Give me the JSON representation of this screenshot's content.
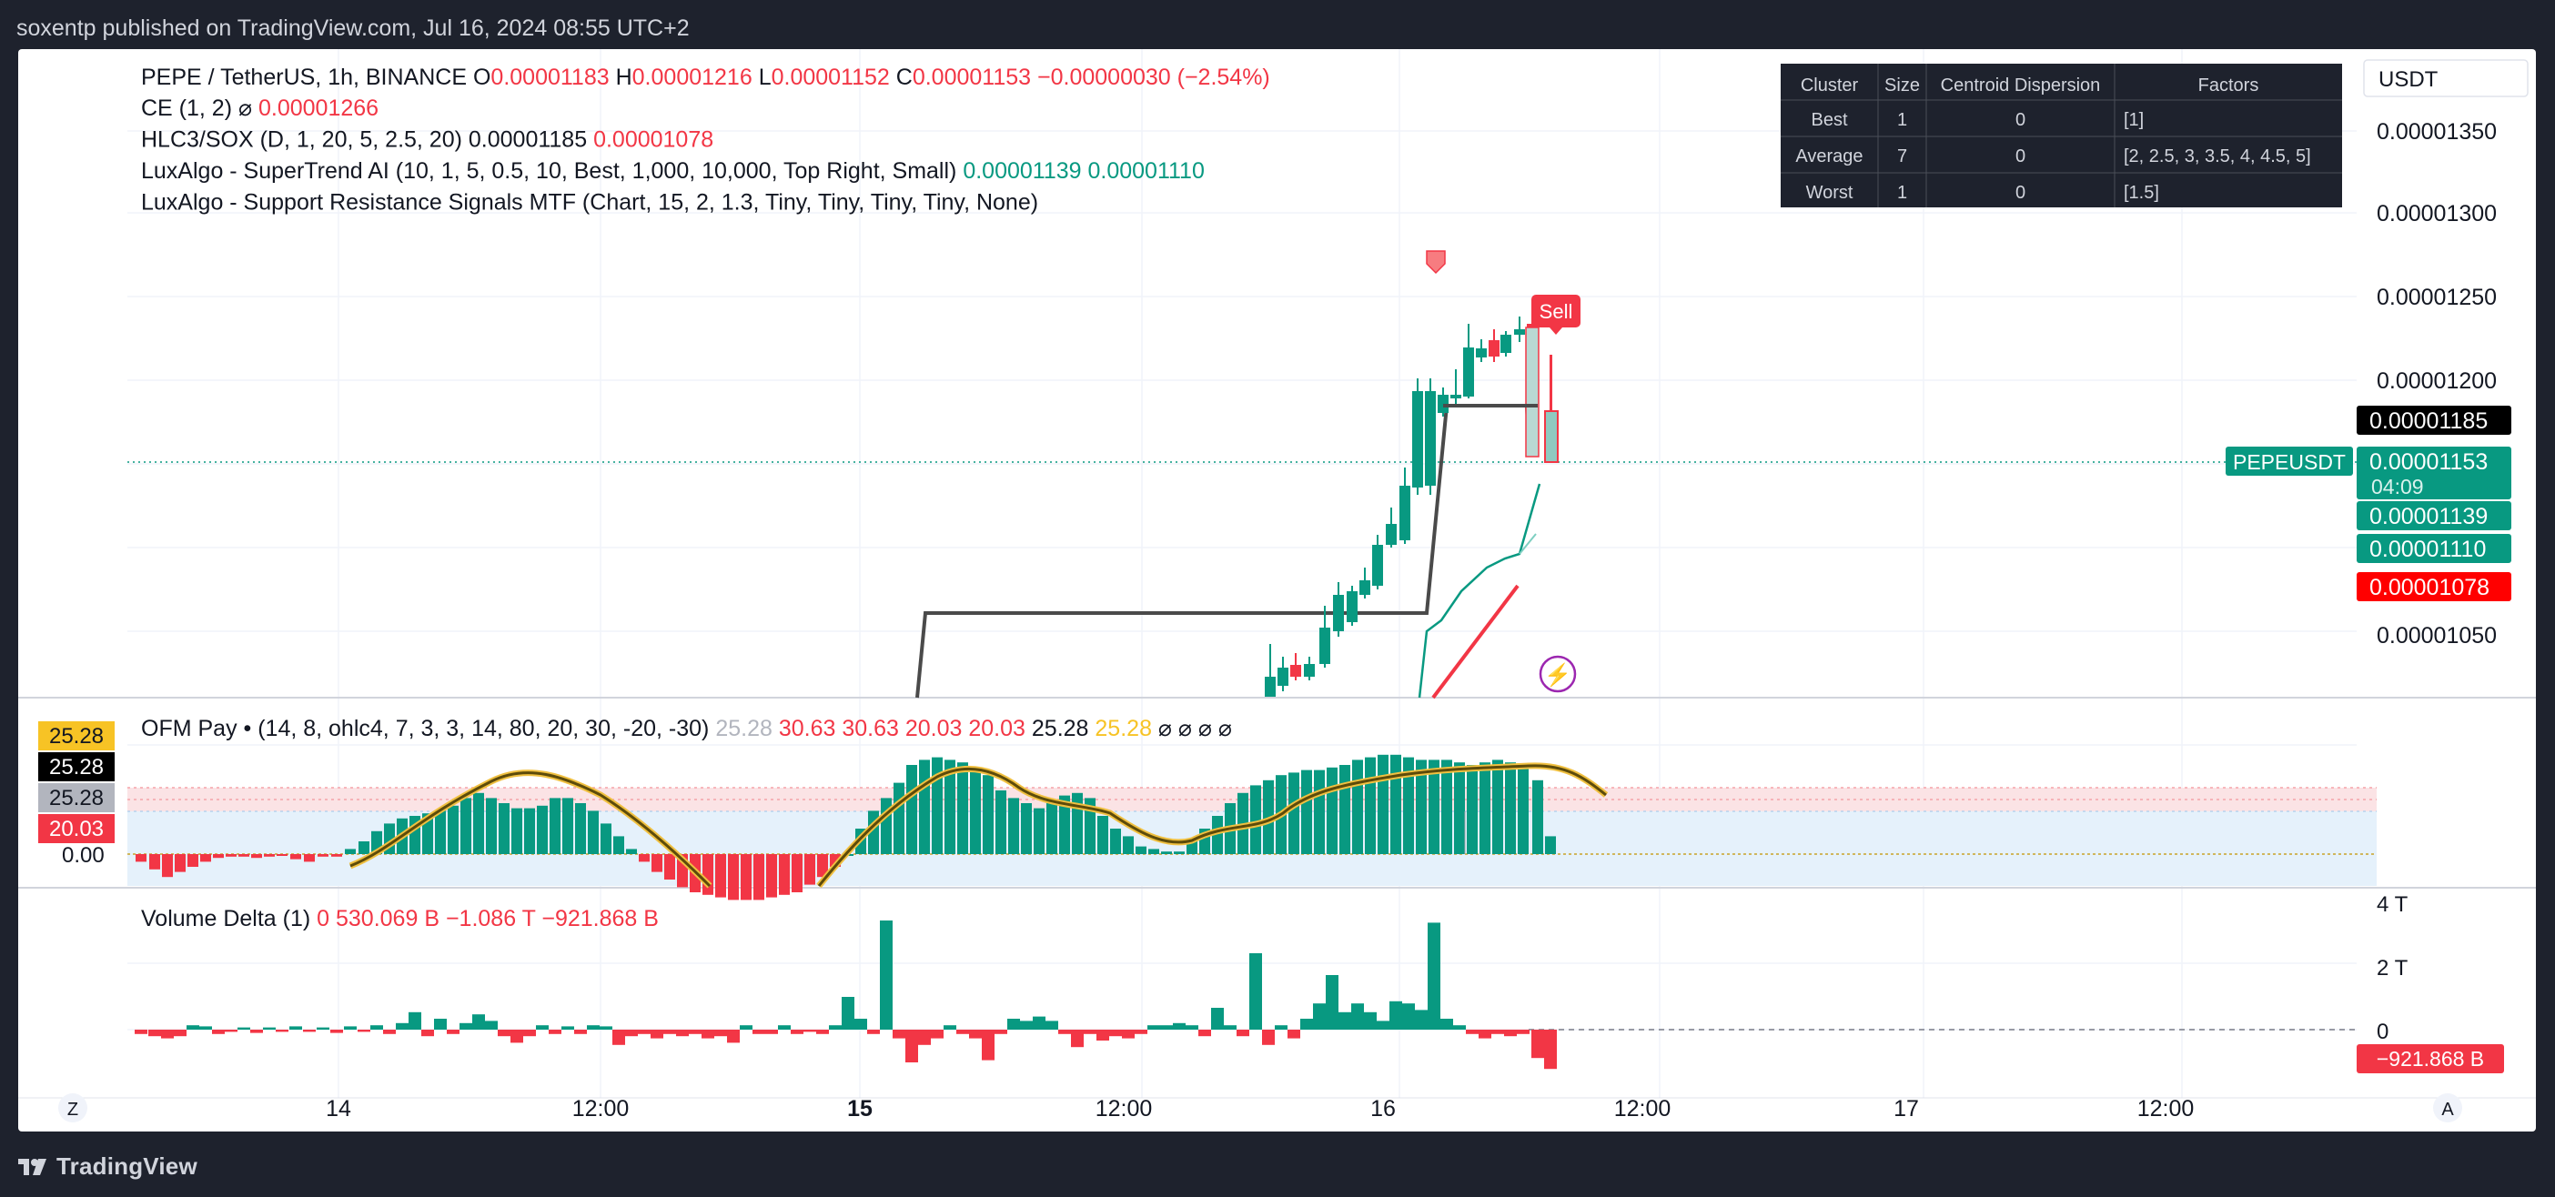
{
  "publisher": "soxentp published on TradingView.com, Jul 16, 2024 08:55 UTC+2",
  "footer": {
    "brand": "TradingView"
  },
  "main": {
    "symbol": "PEPE / TetherUS, 1h, BINANCE",
    "ohlc": {
      "o_label": "O",
      "o": "0.00001183",
      "h_label": "H",
      "h": "0.00001216",
      "l_label": "L",
      "l": "0.00001152",
      "c_label": "C",
      "c": "0.00001153",
      "change": "−0.00000030 (−2.54%)"
    },
    "indicators": [
      {
        "name": "CE (1, 2)",
        "sym": "⌀",
        "values": [
          {
            "v": "0.00001266",
            "color": "#f23645"
          }
        ]
      },
      {
        "name": "HLC3/SOX (D, 1, 20, 5, 2.5, 20)",
        "values": [
          {
            "v": "0.00001185",
            "color": "#131722"
          },
          {
            "v": "0.00001078",
            "color": "#f23645"
          }
        ]
      },
      {
        "name": "LuxAlgo - SuperTrend AI (10, 1, 5, 0.5, 10, Best, 1,000, 10,000, Top Right, Small)",
        "values": [
          {
            "v": "0.00001139",
            "color": "#089981"
          },
          {
            "v": "0.00001110",
            "color": "#089981"
          }
        ]
      },
      {
        "name": "LuxAlgo - Support Resistance Signals MTF (Chart, 15, 2, 1.3, Tiny, Tiny, Tiny, Tiny, None)",
        "values": []
      }
    ],
    "currency": "USDT",
    "y_ticks": [
      "0.00001350",
      "0.00001300",
      "0.00001250",
      "0.00001200",
      "0.00001050"
    ],
    "price_labels": [
      {
        "text": "0.00001185",
        "bg": "#000000"
      },
      {
        "text": "0.00001153",
        "bg": "#089981",
        "sub": "04:09"
      },
      {
        "text": "0.00001139",
        "bg": "#089981"
      },
      {
        "text": "0.00001110",
        "bg": "#089981"
      },
      {
        "text": "0.00001078",
        "bg": "#ff0000"
      }
    ],
    "symbol_tag": "PEPEUSDT",
    "sell_label": "Sell",
    "cluster_table": {
      "headers": [
        "Cluster",
        "Size",
        "Centroid Dispersion",
        "Factors"
      ],
      "rows": [
        [
          "Best",
          "1",
          "0",
          "[1]"
        ],
        [
          "Average",
          "7",
          "0",
          "[2, 2.5, 3, 3.5, 4, 4.5, 5]"
        ],
        [
          "Worst",
          "1",
          "0",
          "[1.5]"
        ]
      ]
    }
  },
  "ofm": {
    "title": "OFM Pay",
    "params": "(14, 8, ohlc4, 7, 3, 3, 14, 80, 20, 30, -20, -30)",
    "values": [
      {
        "v": "25.28",
        "color": "#b2b5be"
      },
      {
        "v": "30.63",
        "color": "#f23645"
      },
      {
        "v": "30.63",
        "color": "#f23645"
      },
      {
        "v": "20.03",
        "color": "#f23645"
      },
      {
        "v": "20.03",
        "color": "#f23645"
      },
      {
        "v": "25.28",
        "color": "#131722"
      },
      {
        "v": "25.28",
        "color": "#f7c325"
      }
    ],
    "empty_values": [
      "⌀",
      "⌀",
      "⌀",
      "⌀"
    ],
    "axis_labels": [
      {
        "text": "25.28",
        "bg": "#f7c325",
        "fg": "#131722"
      },
      {
        "text": "25.28",
        "bg": "#000000",
        "fg": "#ffffff"
      },
      {
        "text": "25.28",
        "bg": "#b2b5be",
        "fg": "#131722"
      },
      {
        "text": "20.03",
        "bg": "#f23645",
        "fg": "#ffffff"
      }
    ],
    "zero_label": "0.00"
  },
  "volume": {
    "title": "Volume Delta (1)",
    "values": [
      {
        "v": "0",
        "color": "#f23645"
      },
      {
        "v": "530.069 B",
        "color": "#f23645"
      },
      {
        "v": "−1.086 T",
        "color": "#f23645"
      },
      {
        "v": "−921.868 B",
        "color": "#f23645"
      }
    ],
    "y_ticks": [
      "4 T",
      "2 T",
      "0"
    ],
    "last_label": "−921.868 B"
  },
  "time_axis": {
    "labels": [
      {
        "t": "14",
        "bold": false
      },
      {
        "t": "12:00",
        "bold": false
      },
      {
        "t": "15",
        "bold": true
      },
      {
        "t": "12:00",
        "bold": false
      },
      {
        "t": "16",
        "bold": false
      },
      {
        "t": "12:00",
        "bold": false
      },
      {
        "t": "17",
        "bold": false
      },
      {
        "t": "12:00",
        "bold": false
      }
    ],
    "left_btn": "Z",
    "right_btn": "A"
  },
  "colors": {
    "up": "#089981",
    "down": "#f23645",
    "hlc3": "#4a4a4a",
    "ofm_line": "#5d4b0a",
    "ofm_glow": "#f0c040"
  }
}
